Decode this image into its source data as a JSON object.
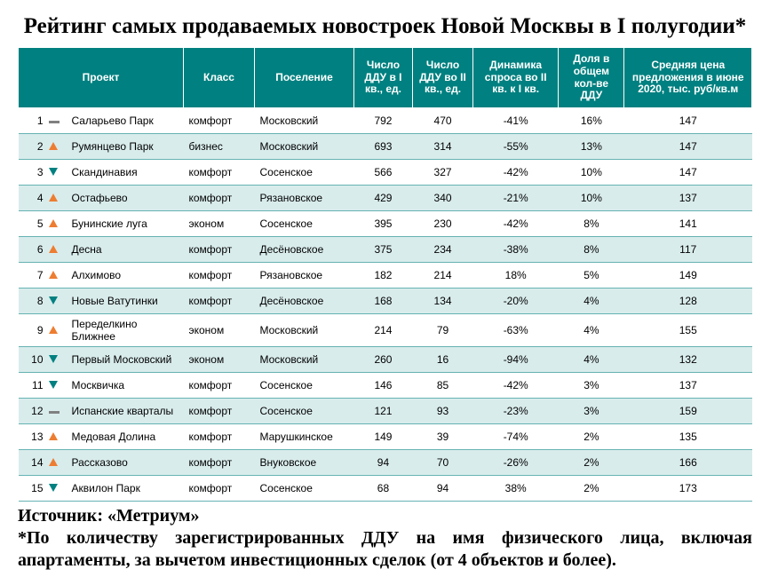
{
  "title": "Рейтинг самых продаваемых новостроек Новой Москвы в I полугодии*",
  "headers": {
    "rank": "",
    "trend": "",
    "project": "Проект",
    "class": "Класс",
    "settlement": "Поселение",
    "ddu_q1": "Число ДДУ в I кв., ед.",
    "ddu_q2": "Число ДДУ во II кв., ед.",
    "dynamics": "Динамика спроса во II кв. к I кв.",
    "share": "Доля в общем кол-ве ДДУ",
    "price": "Средняя цена предложения в июне 2020, тыс. руб/кв.м"
  },
  "rows": [
    {
      "rank": "1",
      "trend": "same",
      "project": "Саларьево Парк",
      "class": "комфорт",
      "settlement": "Московский",
      "ddu_q1": "792",
      "ddu_q2": "470",
      "dynamics": "-41%",
      "share": "16%",
      "price": "147"
    },
    {
      "rank": "2",
      "trend": "up",
      "project": "Румянцево Парк",
      "class": "бизнес",
      "settlement": "Московский",
      "ddu_q1": "693",
      "ddu_q2": "314",
      "dynamics": "-55%",
      "share": "13%",
      "price": "147"
    },
    {
      "rank": "3",
      "trend": "down",
      "project": "Скандинавия",
      "class": "комфорт",
      "settlement": "Сосенское",
      "ddu_q1": "566",
      "ddu_q2": "327",
      "dynamics": "-42%",
      "share": "10%",
      "price": "147"
    },
    {
      "rank": "4",
      "trend": "up",
      "project": "Остафьево",
      "class": "комфорт",
      "settlement": "Рязановское",
      "ddu_q1": "429",
      "ddu_q2": "340",
      "dynamics": "-21%",
      "share": "10%",
      "price": "137"
    },
    {
      "rank": "5",
      "trend": "up",
      "project": "Бунинские луга",
      "class": "эконом",
      "settlement": "Сосенское",
      "ddu_q1": "395",
      "ddu_q2": "230",
      "dynamics": "-42%",
      "share": "8%",
      "price": "141"
    },
    {
      "rank": "6",
      "trend": "up",
      "project": "Десна",
      "class": "комфорт",
      "settlement": "Десёновское",
      "ddu_q1": "375",
      "ddu_q2": "234",
      "dynamics": "-38%",
      "share": "8%",
      "price": "117"
    },
    {
      "rank": "7",
      "trend": "up",
      "project": "Алхимово",
      "class": "комфорт",
      "settlement": "Рязановское",
      "ddu_q1": "182",
      "ddu_q2": "214",
      "dynamics": "18%",
      "share": "5%",
      "price": "149"
    },
    {
      "rank": "8",
      "trend": "down",
      "project": "Новые Ватутинки",
      "class": "комфорт",
      "settlement": "Десёновское",
      "ddu_q1": "168",
      "ddu_q2": "134",
      "dynamics": "-20%",
      "share": "4%",
      "price": "128"
    },
    {
      "rank": "9",
      "trend": "up",
      "project": "Переделкино Ближнее",
      "class": "эконом",
      "settlement": "Московский",
      "ddu_q1": "214",
      "ddu_q2": "79",
      "dynamics": "-63%",
      "share": "4%",
      "price": "155"
    },
    {
      "rank": "10",
      "trend": "down",
      "project": "Первый Московский",
      "class": "эконом",
      "settlement": "Московский",
      "ddu_q1": "260",
      "ddu_q2": "16",
      "dynamics": "-94%",
      "share": "4%",
      "price": "132"
    },
    {
      "rank": "11",
      "trend": "down",
      "project": "Москвичка",
      "class": "комфорт",
      "settlement": "Сосенское",
      "ddu_q1": "146",
      "ddu_q2": "85",
      "dynamics": "-42%",
      "share": "3%",
      "price": "137"
    },
    {
      "rank": "12",
      "trend": "same",
      "project": "Испанские кварталы",
      "class": "комфорт",
      "settlement": "Сосенское",
      "ddu_q1": "121",
      "ddu_q2": "93",
      "dynamics": "-23%",
      "share": "3%",
      "price": "159"
    },
    {
      "rank": "13",
      "trend": "up",
      "project": "Медовая Долина",
      "class": "комфорт",
      "settlement": "Марушкинское",
      "ddu_q1": "149",
      "ddu_q2": "39",
      "dynamics": "-74%",
      "share": "2%",
      "price": "135"
    },
    {
      "rank": "14",
      "trend": "up",
      "project": "Рассказово",
      "class": "комфорт",
      "settlement": "Внуковское",
      "ddu_q1": "94",
      "ddu_q2": "70",
      "dynamics": "-26%",
      "share": "2%",
      "price": "166"
    },
    {
      "rank": "15",
      "trend": "down",
      "project": "Аквилон Парк",
      "class": "комфорт",
      "settlement": "Сосенское",
      "ddu_q1": "68",
      "ddu_q2": "94",
      "dynamics": "38%",
      "share": "2%",
      "price": "173"
    }
  ],
  "source": "Источник: «Метриум»",
  "footnote": "*По количеству зарегистрированных ДДУ на имя физического лица, включая апартаменты, за вычетом инвестиционных сделок (от 4 объектов и более)."
}
